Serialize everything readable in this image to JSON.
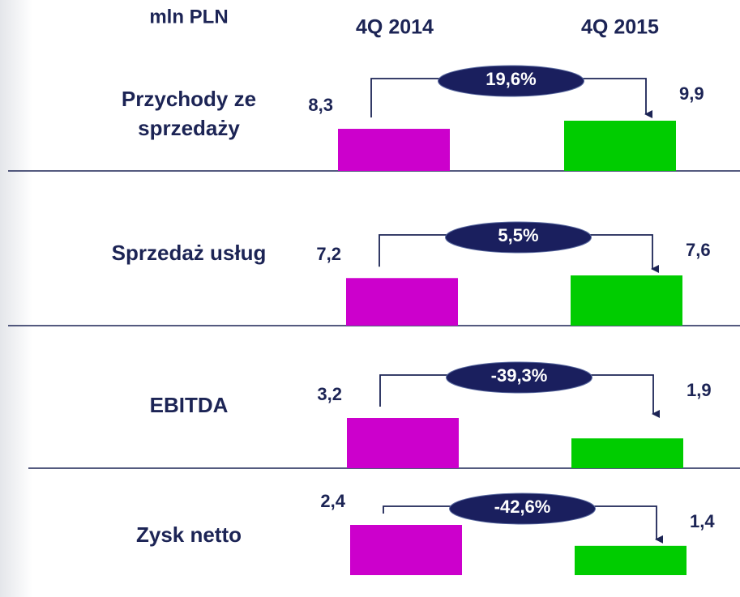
{
  "chart_data": {
    "type": "bar",
    "unit": "mln PLN",
    "categories": [
      "4Q 2014",
      "4Q 2015"
    ],
    "colors": [
      "#cc00cc",
      "#00cc00"
    ],
    "rows": [
      {
        "label": "Przychody ze sprzedaży",
        "values": [
          8.3,
          9.9
        ],
        "value_labels": [
          "8,3",
          "9,9"
        ],
        "change": 19.6,
        "change_label": "19,6%"
      },
      {
        "label": "Sprzedaż usług",
        "values": [
          7.2,
          7.6
        ],
        "value_labels": [
          "7,2",
          "7,6"
        ],
        "change": 5.5,
        "change_label": "5,5%"
      },
      {
        "label": "EBITDA",
        "values": [
          3.2,
          1.9
        ],
        "value_labels": [
          "3,2",
          "1,9"
        ],
        "change": -39.3,
        "change_label": "-39,3%"
      },
      {
        "label": "Zysk netto",
        "values": [
          2.4,
          1.4
        ],
        "value_labels": [
          "2,4",
          "1,4"
        ],
        "change": -42.6,
        "change_label": "-42,6%"
      }
    ]
  }
}
